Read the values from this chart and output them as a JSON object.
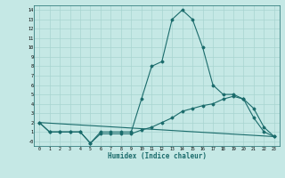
{
  "title": "",
  "xlabel": "Humidex (Indice chaleur)",
  "ylabel": "",
  "bg_color": "#c5e8e5",
  "line_color": "#1a6b6b",
  "grid_color": "#a8d4d0",
  "xlim": [
    -0.5,
    23.5
  ],
  "ylim": [
    -0.5,
    14.5
  ],
  "x_ticks": [
    0,
    1,
    2,
    3,
    4,
    5,
    6,
    7,
    8,
    9,
    10,
    11,
    12,
    13,
    14,
    15,
    16,
    17,
    18,
    19,
    20,
    21,
    22,
    23
  ],
  "y_ticks": [
    0,
    1,
    2,
    3,
    4,
    5,
    6,
    7,
    8,
    9,
    10,
    11,
    12,
    13,
    14
  ],
  "y_tick_labels": [
    "-0",
    "1",
    "2",
    "3",
    "4",
    "5",
    "6",
    "7",
    "8",
    "9",
    "10",
    "11",
    "12",
    "13",
    "14"
  ],
  "line1_x": [
    0,
    1,
    2,
    3,
    4,
    5,
    6,
    7,
    8,
    9,
    10,
    11,
    12,
    13,
    14,
    15,
    16,
    17,
    18,
    19,
    20,
    21,
    22,
    23
  ],
  "line1_y": [
    2,
    1,
    1,
    1,
    1,
    -0.2,
    1,
    1,
    1,
    1,
    4.5,
    8,
    8.5,
    13,
    14,
    13,
    10,
    6,
    5,
    5,
    4.5,
    2.5,
    1,
    0.5
  ],
  "line2_x": [
    0,
    1,
    2,
    3,
    4,
    5,
    6,
    7,
    8,
    9,
    10,
    11,
    12,
    13,
    14,
    15,
    16,
    17,
    18,
    19,
    20,
    21,
    22,
    23
  ],
  "line2_y": [
    2,
    1,
    1,
    1,
    1,
    -0.2,
    0.8,
    0.8,
    0.8,
    0.8,
    1.2,
    1.5,
    2,
    2.5,
    3.2,
    3.5,
    3.8,
    4,
    4.5,
    4.8,
    4.5,
    3.5,
    1.5,
    0.5
  ],
  "line3_x": [
    0,
    23
  ],
  "line3_y": [
    2,
    0.5
  ]
}
